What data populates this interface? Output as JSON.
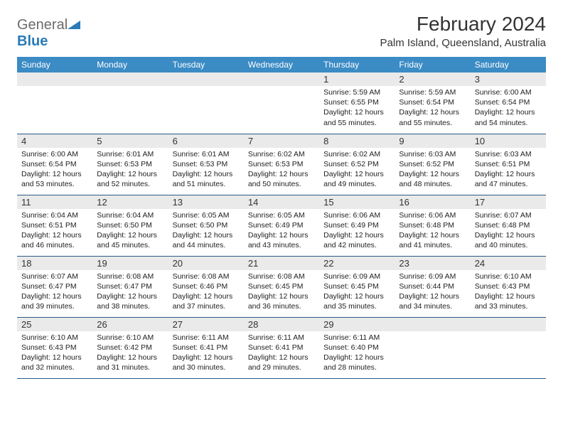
{
  "logo": {
    "text_gray": "General",
    "text_blue": "Blue"
  },
  "title": "February 2024",
  "location": "Palm Island, Queensland, Australia",
  "colors": {
    "header_bg": "#3b8bc4",
    "header_text": "#ffffff",
    "daynum_bg": "#eaeaea",
    "border": "#2a5a8a",
    "logo_gray": "#6b6b6b",
    "logo_blue": "#2a7ab8"
  },
  "day_names": [
    "Sunday",
    "Monday",
    "Tuesday",
    "Wednesday",
    "Thursday",
    "Friday",
    "Saturday"
  ],
  "weeks": [
    [
      null,
      null,
      null,
      null,
      {
        "n": "1",
        "sr": "Sunrise: 5:59 AM",
        "ss": "Sunset: 6:55 PM",
        "dl1": "Daylight: 12 hours",
        "dl2": "and 55 minutes."
      },
      {
        "n": "2",
        "sr": "Sunrise: 5:59 AM",
        "ss": "Sunset: 6:54 PM",
        "dl1": "Daylight: 12 hours",
        "dl2": "and 55 minutes."
      },
      {
        "n": "3",
        "sr": "Sunrise: 6:00 AM",
        "ss": "Sunset: 6:54 PM",
        "dl1": "Daylight: 12 hours",
        "dl2": "and 54 minutes."
      }
    ],
    [
      {
        "n": "4",
        "sr": "Sunrise: 6:00 AM",
        "ss": "Sunset: 6:54 PM",
        "dl1": "Daylight: 12 hours",
        "dl2": "and 53 minutes."
      },
      {
        "n": "5",
        "sr": "Sunrise: 6:01 AM",
        "ss": "Sunset: 6:53 PM",
        "dl1": "Daylight: 12 hours",
        "dl2": "and 52 minutes."
      },
      {
        "n": "6",
        "sr": "Sunrise: 6:01 AM",
        "ss": "Sunset: 6:53 PM",
        "dl1": "Daylight: 12 hours",
        "dl2": "and 51 minutes."
      },
      {
        "n": "7",
        "sr": "Sunrise: 6:02 AM",
        "ss": "Sunset: 6:53 PM",
        "dl1": "Daylight: 12 hours",
        "dl2": "and 50 minutes."
      },
      {
        "n": "8",
        "sr": "Sunrise: 6:02 AM",
        "ss": "Sunset: 6:52 PM",
        "dl1": "Daylight: 12 hours",
        "dl2": "and 49 minutes."
      },
      {
        "n": "9",
        "sr": "Sunrise: 6:03 AM",
        "ss": "Sunset: 6:52 PM",
        "dl1": "Daylight: 12 hours",
        "dl2": "and 48 minutes."
      },
      {
        "n": "10",
        "sr": "Sunrise: 6:03 AM",
        "ss": "Sunset: 6:51 PM",
        "dl1": "Daylight: 12 hours",
        "dl2": "and 47 minutes."
      }
    ],
    [
      {
        "n": "11",
        "sr": "Sunrise: 6:04 AM",
        "ss": "Sunset: 6:51 PM",
        "dl1": "Daylight: 12 hours",
        "dl2": "and 46 minutes."
      },
      {
        "n": "12",
        "sr": "Sunrise: 6:04 AM",
        "ss": "Sunset: 6:50 PM",
        "dl1": "Daylight: 12 hours",
        "dl2": "and 45 minutes."
      },
      {
        "n": "13",
        "sr": "Sunrise: 6:05 AM",
        "ss": "Sunset: 6:50 PM",
        "dl1": "Daylight: 12 hours",
        "dl2": "and 44 minutes."
      },
      {
        "n": "14",
        "sr": "Sunrise: 6:05 AM",
        "ss": "Sunset: 6:49 PM",
        "dl1": "Daylight: 12 hours",
        "dl2": "and 43 minutes."
      },
      {
        "n": "15",
        "sr": "Sunrise: 6:06 AM",
        "ss": "Sunset: 6:49 PM",
        "dl1": "Daylight: 12 hours",
        "dl2": "and 42 minutes."
      },
      {
        "n": "16",
        "sr": "Sunrise: 6:06 AM",
        "ss": "Sunset: 6:48 PM",
        "dl1": "Daylight: 12 hours",
        "dl2": "and 41 minutes."
      },
      {
        "n": "17",
        "sr": "Sunrise: 6:07 AM",
        "ss": "Sunset: 6:48 PM",
        "dl1": "Daylight: 12 hours",
        "dl2": "and 40 minutes."
      }
    ],
    [
      {
        "n": "18",
        "sr": "Sunrise: 6:07 AM",
        "ss": "Sunset: 6:47 PM",
        "dl1": "Daylight: 12 hours",
        "dl2": "and 39 minutes."
      },
      {
        "n": "19",
        "sr": "Sunrise: 6:08 AM",
        "ss": "Sunset: 6:47 PM",
        "dl1": "Daylight: 12 hours",
        "dl2": "and 38 minutes."
      },
      {
        "n": "20",
        "sr": "Sunrise: 6:08 AM",
        "ss": "Sunset: 6:46 PM",
        "dl1": "Daylight: 12 hours",
        "dl2": "and 37 minutes."
      },
      {
        "n": "21",
        "sr": "Sunrise: 6:08 AM",
        "ss": "Sunset: 6:45 PM",
        "dl1": "Daylight: 12 hours",
        "dl2": "and 36 minutes."
      },
      {
        "n": "22",
        "sr": "Sunrise: 6:09 AM",
        "ss": "Sunset: 6:45 PM",
        "dl1": "Daylight: 12 hours",
        "dl2": "and 35 minutes."
      },
      {
        "n": "23",
        "sr": "Sunrise: 6:09 AM",
        "ss": "Sunset: 6:44 PM",
        "dl1": "Daylight: 12 hours",
        "dl2": "and 34 minutes."
      },
      {
        "n": "24",
        "sr": "Sunrise: 6:10 AM",
        "ss": "Sunset: 6:43 PM",
        "dl1": "Daylight: 12 hours",
        "dl2": "and 33 minutes."
      }
    ],
    [
      {
        "n": "25",
        "sr": "Sunrise: 6:10 AM",
        "ss": "Sunset: 6:43 PM",
        "dl1": "Daylight: 12 hours",
        "dl2": "and 32 minutes."
      },
      {
        "n": "26",
        "sr": "Sunrise: 6:10 AM",
        "ss": "Sunset: 6:42 PM",
        "dl1": "Daylight: 12 hours",
        "dl2": "and 31 minutes."
      },
      {
        "n": "27",
        "sr": "Sunrise: 6:11 AM",
        "ss": "Sunset: 6:41 PM",
        "dl1": "Daylight: 12 hours",
        "dl2": "and 30 minutes."
      },
      {
        "n": "28",
        "sr": "Sunrise: 6:11 AM",
        "ss": "Sunset: 6:41 PM",
        "dl1": "Daylight: 12 hours",
        "dl2": "and 29 minutes."
      },
      {
        "n": "29",
        "sr": "Sunrise: 6:11 AM",
        "ss": "Sunset: 6:40 PM",
        "dl1": "Daylight: 12 hours",
        "dl2": "and 28 minutes."
      },
      null,
      null
    ]
  ]
}
